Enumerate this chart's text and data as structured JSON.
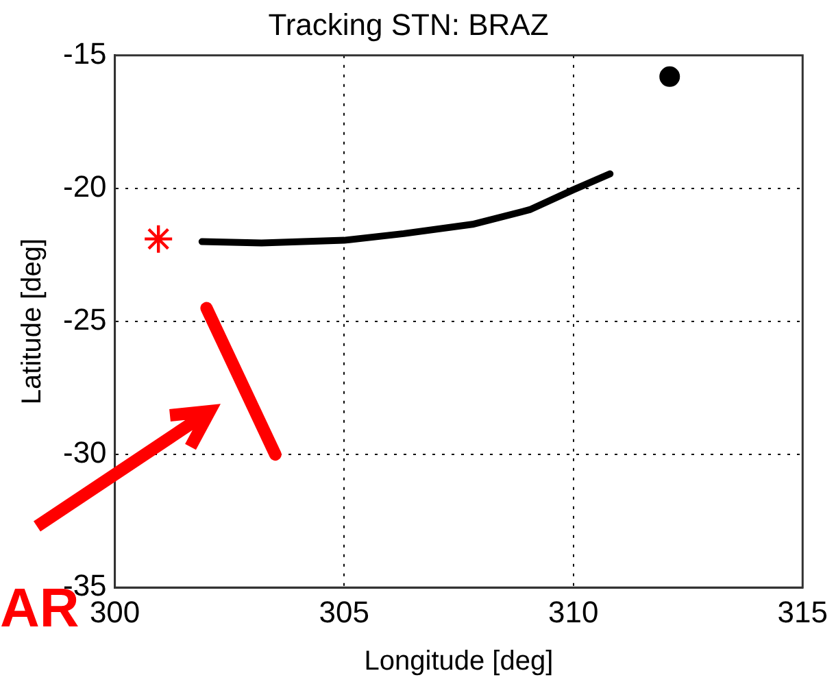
{
  "chart_data": {
    "type": "scatter",
    "title": "Tracking STN: BRAZ",
    "xlabel": "Longitude [deg]",
    "ylabel": "Latitude [deg]",
    "xlim": [
      300,
      315
    ],
    "xticks": [
      300,
      305,
      310,
      315
    ],
    "ylim": [
      -35,
      -15
    ],
    "yticks": [
      -35,
      -30,
      -25,
      -20,
      -15
    ],
    "grid": true,
    "legend": false,
    "annotations": [
      "AR"
    ],
    "series": [
      {
        "type": "line",
        "color": "#000000",
        "marker": "none",
        "x": [
          301.9,
          303.2,
          305.0,
          306.3,
          307.8,
          309.05,
          310.0,
          310.8
        ],
        "values": [
          -22.0,
          -22.05,
          -21.95,
          -21.7,
          -21.35,
          -20.8,
          -20.05,
          -19.45
        ]
      },
      {
        "type": "scatter",
        "color": "#ff0000",
        "marker": "cross",
        "x": [
          300.95
        ],
        "values": [
          -21.9
        ]
      },
      {
        "type": "scatter",
        "color": "#000000",
        "marker": "circle",
        "x": [
          312.1
        ],
        "values": [
          -15.8
        ]
      },
      {
        "type": "line",
        "color": "#ff0000",
        "marker": "none",
        "x": [
          302.0,
          303.5
        ],
        "values": [
          -24.5,
          -30.0
        ]
      }
    ]
  }
}
